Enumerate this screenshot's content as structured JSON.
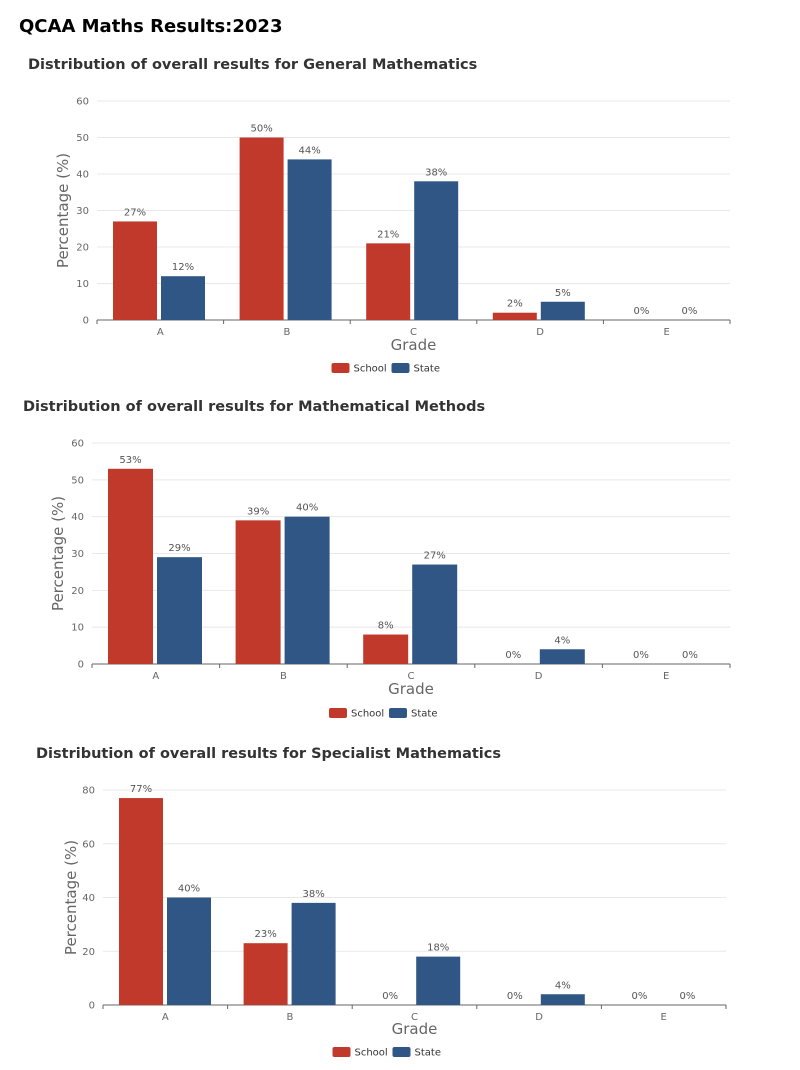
{
  "page_title": "QCAA Maths Results:2023",
  "colors": {
    "school": "#c0392b",
    "state": "#2f5684",
    "grid": "#e8e8e8",
    "axis": "#666666"
  },
  "chart_data": [
    {
      "type": "bar",
      "title": "Distribution of overall results for General Mathematics",
      "xlabel": "Grade",
      "ylabel": "Percentage (%)",
      "categories": [
        "A",
        "B",
        "C",
        "D",
        "E"
      ],
      "ylim": [
        0,
        60
      ],
      "yticks": [
        0,
        10,
        20,
        30,
        40,
        50,
        60
      ],
      "series": [
        {
          "name": "School",
          "values": [
            27,
            50,
            21,
            2,
            0
          ],
          "labels": [
            "27%",
            "50%",
            "21%",
            "2%",
            "0%"
          ]
        },
        {
          "name": "State",
          "values": [
            12,
            44,
            38,
            5,
            0
          ],
          "labels": [
            "12%",
            "44%",
            "38%",
            "5%",
            "0%"
          ]
        }
      ],
      "legend": "bottom-center",
      "grid": true
    },
    {
      "type": "bar",
      "title": "Distribution of overall results for Mathematical Methods",
      "xlabel": "Grade",
      "ylabel": "Percentage (%)",
      "categories": [
        "A",
        "B",
        "C",
        "D",
        "E"
      ],
      "ylim": [
        0,
        60
      ],
      "yticks": [
        0,
        10,
        20,
        30,
        40,
        50,
        60
      ],
      "series": [
        {
          "name": "School",
          "values": [
            53,
            39,
            8,
            0,
            0
          ],
          "labels": [
            "53%",
            "39%",
            "8%",
            "0%",
            "0%"
          ]
        },
        {
          "name": "State",
          "values": [
            29,
            40,
            27,
            4,
            0
          ],
          "labels": [
            "29%",
            "40%",
            "27%",
            "4%",
            "0%"
          ]
        }
      ],
      "legend": "bottom-center",
      "grid": true
    },
    {
      "type": "bar",
      "title": "Distribution of overall results for Specialist Mathematics",
      "xlabel": "Grade",
      "ylabel": "Percentage (%)",
      "categories": [
        "A",
        "B",
        "C",
        "D",
        "E"
      ],
      "ylim": [
        0,
        80
      ],
      "yticks": [
        0,
        20,
        40,
        60,
        80
      ],
      "series": [
        {
          "name": "School",
          "values": [
            77,
            23,
            0,
            0,
            0
          ],
          "labels": [
            "77%",
            "23%",
            "0%",
            "0%",
            "0%"
          ]
        },
        {
          "name": "State",
          "values": [
            40,
            38,
            18,
            4,
            0
          ],
          "labels": [
            "40%",
            "38%",
            "18%",
            "4%",
            "0%"
          ]
        }
      ],
      "legend": "bottom-center",
      "grid": true
    }
  ]
}
